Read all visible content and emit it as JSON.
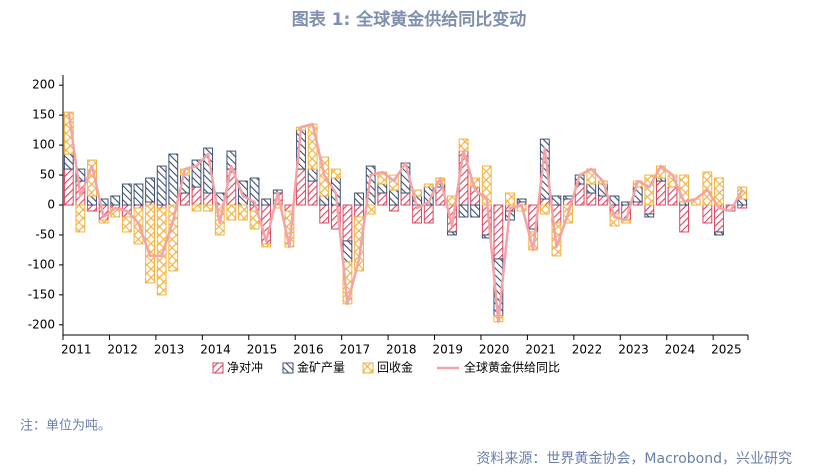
{
  "chart_data": {
    "type": "bar",
    "stacked": true,
    "title": "图表 1:  全球黄金供给同比变动",
    "note": "注：单位为吨。",
    "source": "资料来源：世界黄金协会，Macrobond，兴业研究",
    "categories": [
      "2011",
      null,
      null,
      null,
      "2012",
      null,
      null,
      null,
      "2013",
      null,
      null,
      null,
      "2014",
      null,
      null,
      null,
      "2015",
      null,
      null,
      null,
      "2016",
      null,
      null,
      null,
      "2017",
      null,
      null,
      null,
      "2018",
      null,
      null,
      null,
      "2019",
      null,
      null,
      null,
      "2020",
      null,
      null,
      null,
      "2021",
      null,
      null,
      null,
      "2022",
      null,
      null,
      null,
      "2023",
      null,
      null,
      null,
      "2024",
      null,
      null,
      null,
      "2025",
      null,
      null
    ],
    "ylim": [
      -217,
      217
    ],
    "yticks": [
      -200,
      -150,
      -100,
      -50,
      0,
      50,
      100,
      150,
      200
    ],
    "series": [
      {
        "name": "净对冲",
        "type": "bar",
        "color": "#d9455f",
        "values": [
          60,
          40,
          -10,
          -25,
          -5,
          -20,
          -5,
          5,
          -5,
          0,
          20,
          30,
          20,
          0,
          60,
          0,
          -10,
          -65,
          20,
          -10,
          60,
          40,
          -30,
          -40,
          -60,
          -20,
          0,
          20,
          -10,
          20,
          -30,
          -30,
          30,
          -45,
          90,
          30,
          -50,
          -90,
          -10,
          5,
          -40,
          10,
          -30,
          10,
          35,
          20,
          15,
          -15,
          -25,
          5,
          -15,
          40,
          30,
          -45,
          0,
          -30,
          -45,
          -10,
          -5
        ]
      },
      {
        "name": "金矿产量",
        "type": "bar",
        "color": "#3f4f70",
        "values": [
          25,
          20,
          15,
          10,
          15,
          35,
          35,
          40,
          65,
          85,
          30,
          45,
          75,
          20,
          30,
          40,
          45,
          10,
          5,
          0,
          65,
          20,
          15,
          45,
          -35,
          20,
          65,
          15,
          25,
          50,
          15,
          30,
          5,
          -5,
          -20,
          -20,
          -5,
          -95,
          -15,
          5,
          -5,
          100,
          15,
          5,
          15,
          15,
          20,
          15,
          5,
          25,
          -5,
          5,
          0,
          5,
          0,
          0,
          -5,
          0,
          10
        ]
      },
      {
        "name": "回收金",
        "type": "bar",
        "color": "#f2b23e",
        "values": [
          70,
          -45,
          60,
          -5,
          -15,
          -25,
          -60,
          -130,
          -145,
          -110,
          10,
          -10,
          -10,
          -50,
          -25,
          -25,
          -30,
          -5,
          -5,
          -60,
          5,
          75,
          65,
          15,
          -70,
          -90,
          -15,
          20,
          25,
          0,
          10,
          5,
          10,
          15,
          20,
          15,
          65,
          -10,
          20,
          -10,
          -30,
          -15,
          -55,
          -30,
          0,
          25,
          5,
          -20,
          -5,
          10,
          50,
          20,
          20,
          45,
          10,
          55,
          45,
          0,
          20
        ]
      },
      {
        "name": "全球黄金供给同比",
        "type": "line",
        "color": "#f4a3a6",
        "values": [
          155,
          15,
          65,
          -20,
          -5,
          -10,
          -30,
          -85,
          -85,
          -25,
          60,
          65,
          85,
          -30,
          65,
          15,
          5,
          -60,
          20,
          -70,
          130,
          135,
          50,
          20,
          -165,
          -90,
          50,
          55,
          40,
          70,
          -5,
          5,
          45,
          -35,
          90,
          25,
          10,
          -195,
          -5,
          0,
          -75,
          95,
          -70,
          -15,
          50,
          60,
          40,
          -20,
          -25,
          40,
          30,
          65,
          50,
          5,
          10,
          25,
          -5,
          -10,
          25
        ]
      }
    ]
  }
}
